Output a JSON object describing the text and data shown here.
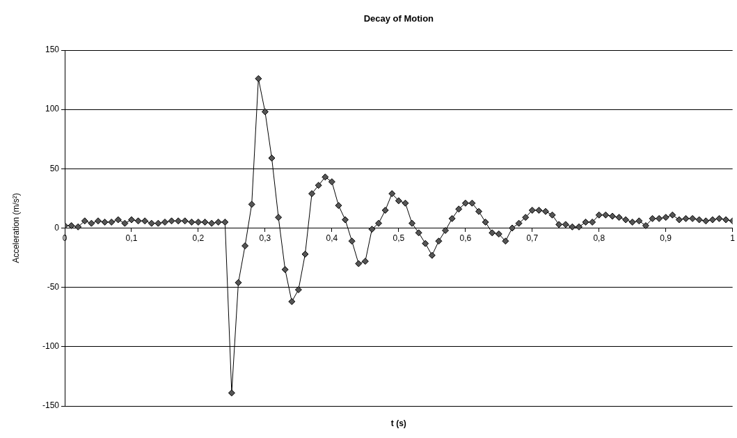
{
  "chart_data": {
    "type": "line",
    "title": "Decay of Motion",
    "xlabel": "t (s)",
    "ylabel": "Acceleration (m/s²)",
    "x": [
      0,
      0.01,
      0.02,
      0.03,
      0.04,
      0.05,
      0.06,
      0.07,
      0.08,
      0.09,
      0.1,
      0.11,
      0.12,
      0.13,
      0.14,
      0.15,
      0.16,
      0.17,
      0.18,
      0.19,
      0.2,
      0.21,
      0.22,
      0.23,
      0.24,
      0.25,
      0.26,
      0.27,
      0.28,
      0.29,
      0.3,
      0.31,
      0.32,
      0.33,
      0.34,
      0.35,
      0.36,
      0.37,
      0.38,
      0.39,
      0.4,
      0.41,
      0.42,
      0.43,
      0.44,
      0.45,
      0.46,
      0.47,
      0.48,
      0.49,
      0.5,
      0.51,
      0.52,
      0.53,
      0.54,
      0.55,
      0.56,
      0.57,
      0.58,
      0.59,
      0.6,
      0.61,
      0.62,
      0.63,
      0.64,
      0.65,
      0.66,
      0.67,
      0.68,
      0.69,
      0.7,
      0.71,
      0.72,
      0.73,
      0.74,
      0.75,
      0.76,
      0.77,
      0.78,
      0.79,
      0.8,
      0.81,
      0.82,
      0.83,
      0.84,
      0.85,
      0.86,
      0.87,
      0.88,
      0.89,
      0.9,
      0.91,
      0.92,
      0.93,
      0.94,
      0.95,
      0.96,
      0.97,
      0.98,
      0.99,
      1
    ],
    "series": [
      {
        "color": "#000000",
        "values": [
          2,
          2,
          1,
          6,
          4,
          6,
          5,
          5,
          7,
          4,
          7,
          6,
          6,
          4,
          4,
          5,
          6,
          6,
          6,
          5,
          5,
          5,
          4,
          5,
          5,
          -139,
          -46,
          -15,
          20,
          126,
          98,
          59,
          9,
          -35,
          -62,
          -52,
          -22,
          29,
          36,
          43,
          39,
          19,
          7,
          -11,
          -30,
          -28,
          -1,
          4,
          15,
          29,
          23,
          21,
          4,
          -4,
          -13,
          -23,
          -11,
          -2,
          8,
          16,
          21,
          21,
          14,
          5,
          -4,
          -5,
          -11,
          0,
          4,
          9,
          15,
          15,
          14,
          11,
          3,
          3,
          1,
          1,
          5,
          5,
          11,
          11,
          10,
          9,
          7,
          5,
          6,
          2,
          8,
          8,
          9,
          11,
          7,
          8,
          8,
          7,
          6,
          7,
          8,
          7,
          6
        ]
      }
    ],
    "marker": "diamond",
    "grid": "y",
    "legend": false,
    "xlim": [
      0,
      1
    ],
    "xticks": [
      0,
      {
        "value": 0.1,
        "label": "0,1"
      },
      {
        "value": 0.2,
        "label": "0,2"
      },
      {
        "value": 0.3,
        "label": "0,3"
      },
      {
        "value": 0.4,
        "label": "0,4"
      },
      {
        "value": 0.5,
        "label": "0,5"
      },
      {
        "value": 0.6,
        "label": "0,6"
      },
      {
        "value": 0.7,
        "label": "0,7"
      },
      {
        "value": 0.8,
        "label": "0,8"
      },
      {
        "value": 0.9,
        "label": "0,9"
      },
      1
    ],
    "ylim": [
      -150,
      150
    ],
    "yticks": [
      -150,
      -100,
      -50,
      0,
      50,
      100,
      150
    ]
  }
}
